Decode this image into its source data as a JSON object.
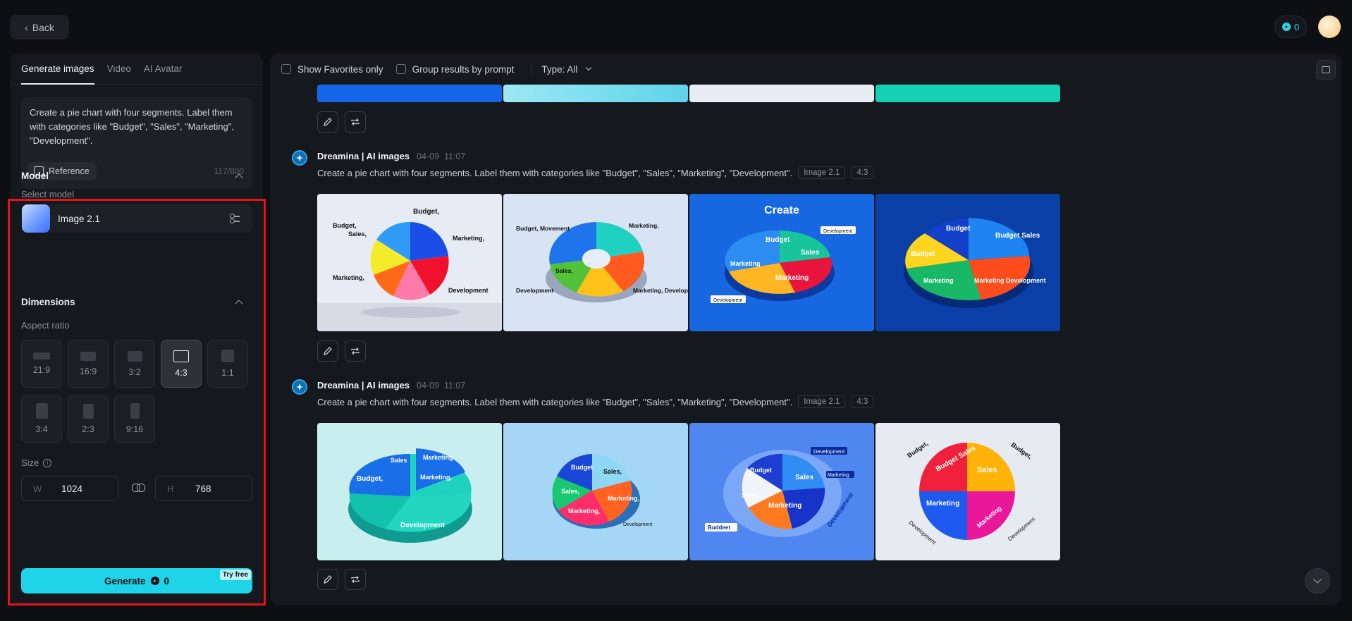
{
  "header": {
    "back_label": "Back",
    "credits": "0"
  },
  "left": {
    "tabs": [
      "Generate images",
      "Video",
      "AI Avatar"
    ],
    "prompt": "Create a pie chart with four segments. Label them with categories like \"Budget\", \"Sales\", \"Marketing\", \"Development\".",
    "reference_label": "Reference",
    "char_count": "117/800",
    "model_title": "Model",
    "select_model_label": "Select model",
    "model_name": "Image 2.1",
    "dimensions_title": "Dimensions",
    "aspect_ratio_label": "Aspect ratio",
    "ratios": [
      "21:9",
      "16:9",
      "3:2",
      "4:3",
      "1:1",
      "3:4",
      "2:3",
      "9:16"
    ],
    "selected_ratio": "4:3",
    "size_label": "Size",
    "width_prefix": "W",
    "width": "1024",
    "height_prefix": "H",
    "height": "768",
    "generate_label": "Generate",
    "generate_cost": "0",
    "try_free": "Try free"
  },
  "toolbar": {
    "show_favorites": "Show Favorites only",
    "group_results": "Group results by prompt",
    "type_filter": "Type: All"
  },
  "generations": [
    {
      "author": "Dreamina | AI images",
      "date": "04-09",
      "time": "11:07",
      "prompt": "Create a pie chart with four segments. Label them with categories like \"Budget\", \"Sales\", \"Marketing\", \"Development\".",
      "model_tag": "Image 2.1",
      "ratio_tag": "4:3",
      "images": [
        {
          "title": "",
          "labels": [
            "Budget,",
            "Sales,",
            "Marketing,",
            "Marketing,",
            "Development"
          ]
        },
        {
          "title": "",
          "labels": [
            "Budget, Movement",
            "Marketing,",
            "Sales,",
            "Development",
            "Marketing, Development"
          ]
        },
        {
          "title": "Create",
          "labels": [
            "Budget",
            "Sales",
            "Marketing",
            "Marketing",
            "Development",
            "Development"
          ]
        },
        {
          "title": "",
          "labels": [
            "Budget",
            "Budget Sales",
            "Budget",
            "Marketing",
            "Marketing Development"
          ]
        }
      ]
    },
    {
      "author": "Dreamina | AI images",
      "date": "04-09",
      "time": "11:07",
      "prompt": "Create a pie chart with four segments. Label them with categories like \"Budget\", \"Sales\", \"Marketing\", \"Development\".",
      "model_tag": "Image 2.1",
      "ratio_tag": "4:3",
      "images": [
        {
          "title": "",
          "labels": [
            "Budget,",
            "Sales",
            "Marketing",
            "Marketing,",
            "Development"
          ]
        },
        {
          "title": "",
          "labels": [
            "Budget",
            "Sales,",
            "Sales,",
            "Marketing,",
            "Marketing,",
            "Development"
          ]
        },
        {
          "title": "",
          "labels": [
            "Budget",
            "Sales",
            "Sales",
            "Marketing",
            "Development",
            "Marketing",
            "Development",
            "Buddeet"
          ]
        },
        {
          "title": "",
          "labels": [
            "Budget,",
            "Budget Sales",
            "Budget,",
            "Sales",
            "Marketing",
            "Marketing",
            "Development",
            "Development"
          ]
        }
      ]
    }
  ],
  "colors": {
    "accent": "#1fd3e8",
    "highlight": "#e3141a"
  }
}
